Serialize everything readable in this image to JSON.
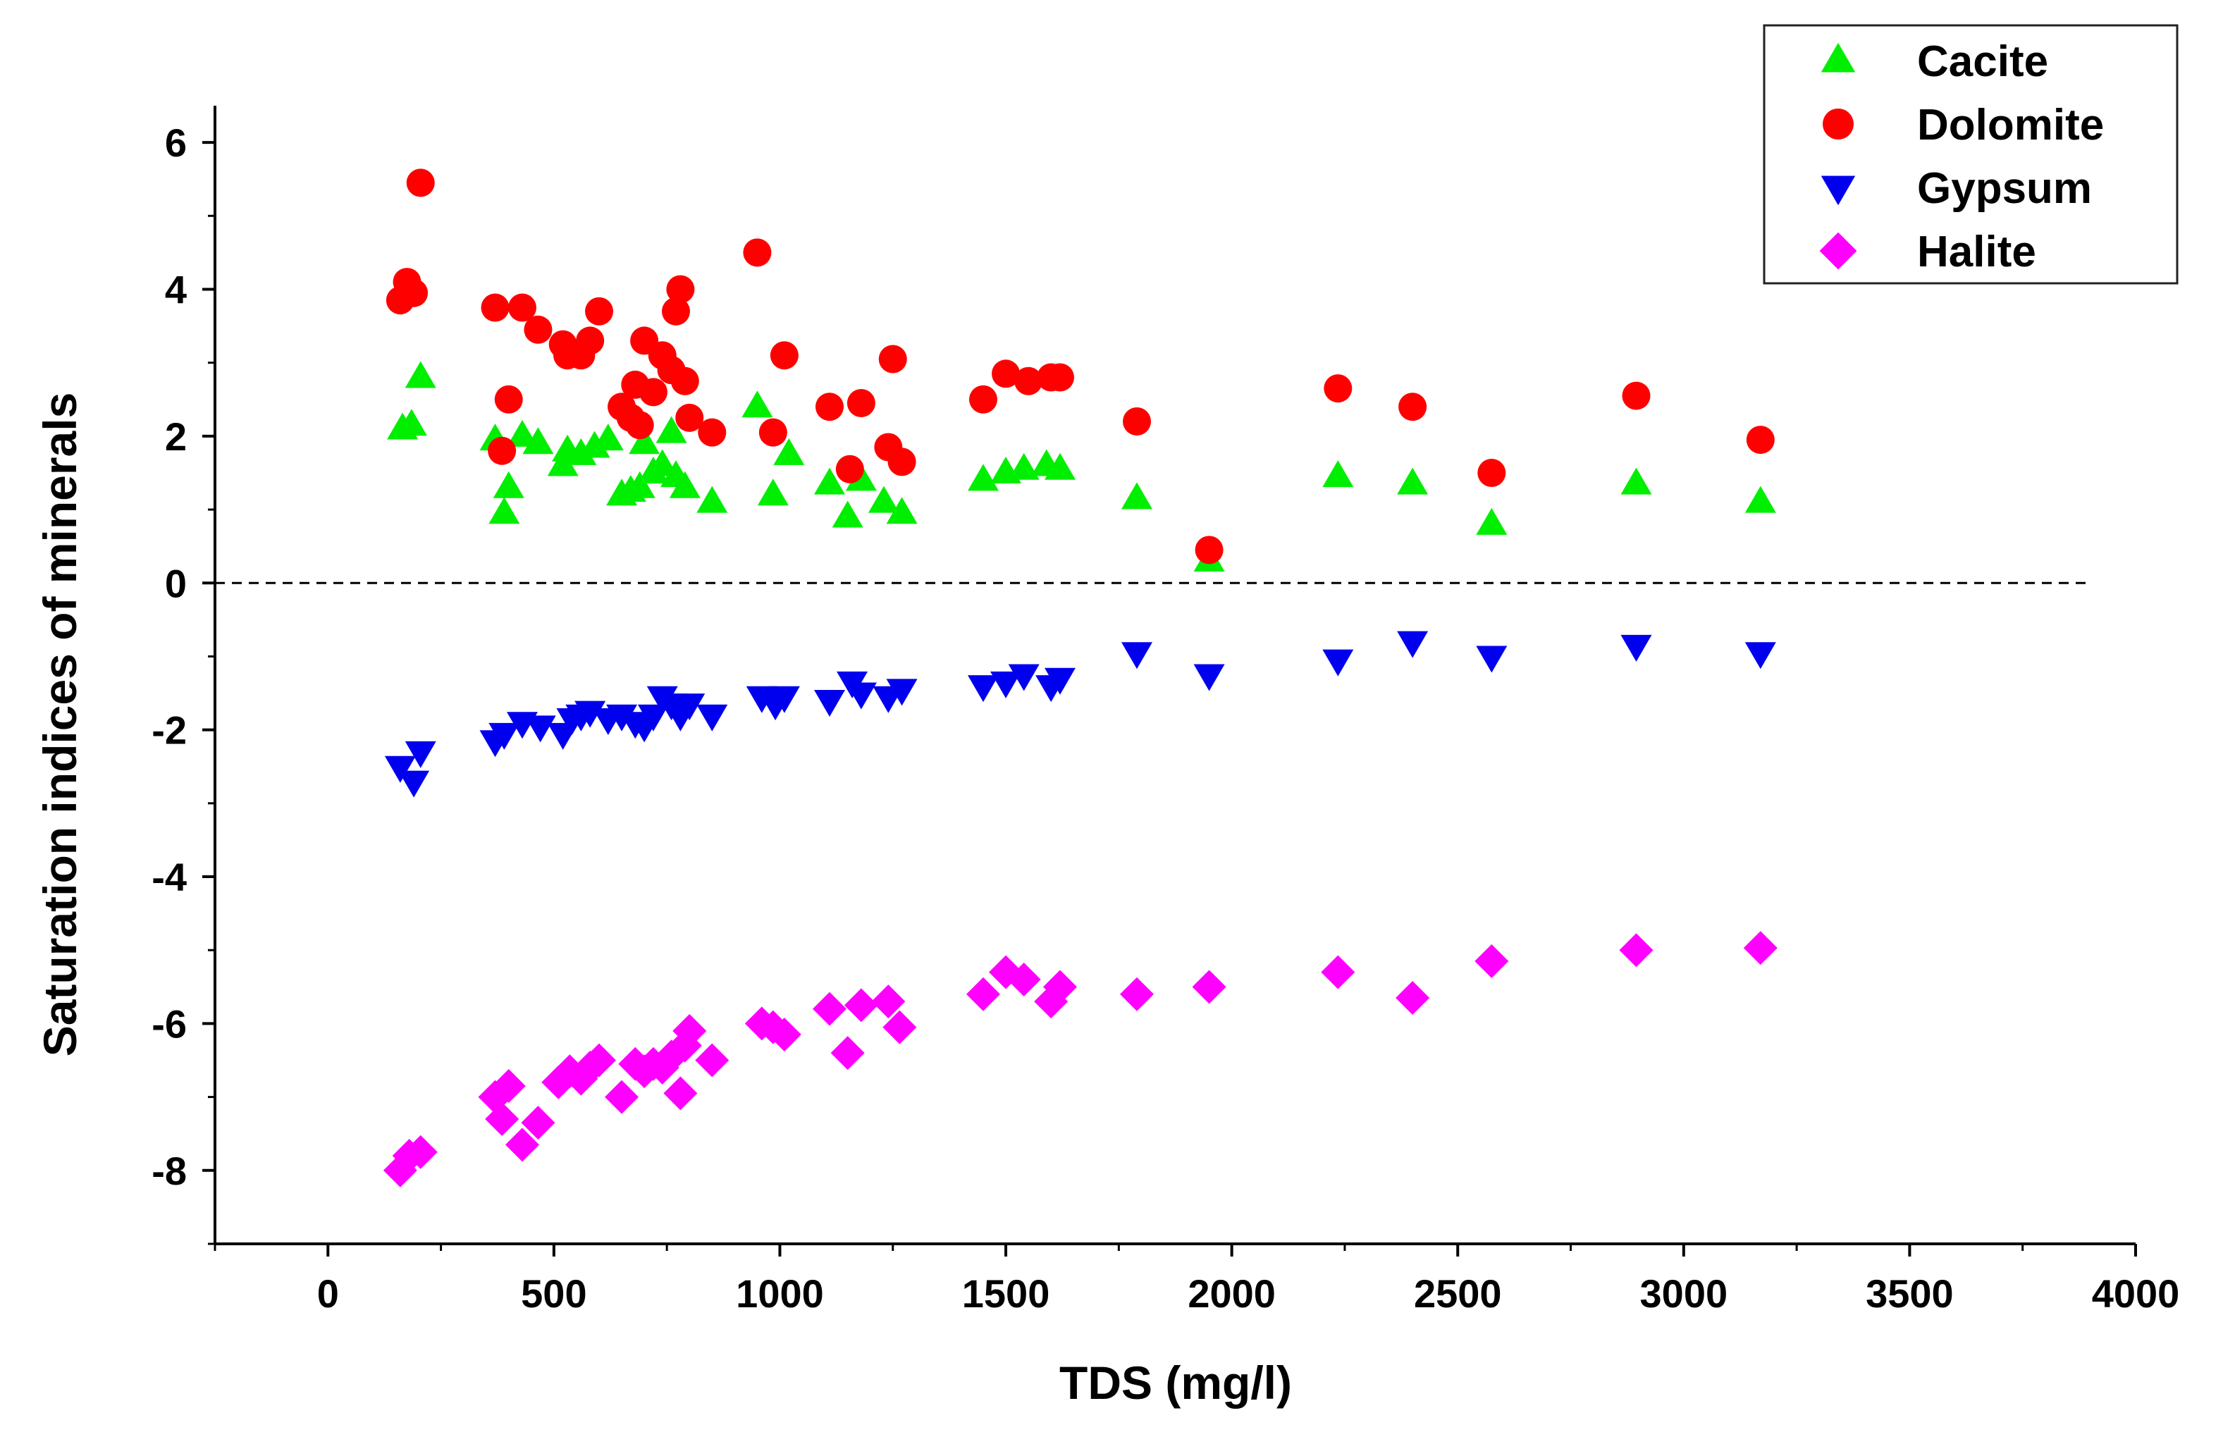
{
  "chart_data": {
    "type": "scatter",
    "title": "",
    "xlabel": "TDS (mg/l)",
    "ylabel": "Saturation indices of minerals",
    "xlim": [
      -250,
      4000
    ],
    "ylim": [
      -9,
      6.5
    ],
    "xticks": [
      0,
      500,
      1000,
      1500,
      2000,
      2500,
      3000,
      3500,
      4000
    ],
    "yticks": [
      -8,
      -6,
      -4,
      -2,
      0,
      2,
      4,
      6
    ],
    "xtick_labels": [
      "0",
      "500",
      "1000",
      "1500",
      "2000",
      "2500",
      "3000",
      "3500",
      "4000"
    ],
    "ytick_labels": [
      "-8",
      "-6",
      "-4",
      "-2",
      "0",
      "2",
      "4",
      "6"
    ],
    "reference_line": {
      "y": 0,
      "style": "dashed"
    },
    "legend_position": "top-right",
    "series": [
      {
        "name": "Cacite",
        "marker": "triangle-up",
        "color": "#00ee00",
        "x": [
          165,
          185,
          205,
          370,
          390,
          400,
          430,
          465,
          520,
          530,
          560,
          590,
          620,
          650,
          670,
          690,
          700,
          720,
          740,
          760,
          770,
          790,
          850,
          950,
          985,
          1020,
          1110,
          1150,
          1180,
          1230,
          1270,
          1450,
          1500,
          1540,
          1590,
          1620,
          1790,
          1950,
          2235,
          2400,
          2575,
          2895,
          3170
        ],
        "y": [
          2.1,
          2.15,
          2.8,
          1.95,
          0.95,
          1.3,
          2.0,
          1.9,
          1.6,
          1.8,
          1.75,
          1.85,
          1.95,
          1.2,
          1.25,
          1.3,
          1.9,
          1.5,
          1.6,
          2.05,
          1.45,
          1.3,
          1.1,
          2.4,
          1.2,
          1.75,
          1.35,
          0.9,
          1.4,
          1.1,
          0.95,
          1.4,
          1.5,
          1.55,
          1.6,
          1.55,
          1.15,
          0.3,
          1.45,
          1.35,
          0.8,
          1.35,
          1.1
        ]
      },
      {
        "name": "Dolomite",
        "marker": "circle",
        "color": "#ff0000",
        "x": [
          160,
          175,
          190,
          205,
          370,
          385,
          400,
          430,
          465,
          520,
          530,
          560,
          580,
          600,
          650,
          670,
          680,
          690,
          700,
          720,
          740,
          760,
          770,
          780,
          790,
          800,
          850,
          950,
          985,
          1010,
          1110,
          1155,
          1180,
          1240,
          1250,
          1270,
          1450,
          1500,
          1550,
          1600,
          1620,
          1790,
          1950,
          2235,
          2400,
          2575,
          2895,
          3170
        ],
        "y": [
          3.85,
          4.1,
          3.95,
          5.45,
          3.75,
          1.8,
          2.5,
          3.75,
          3.45,
          3.25,
          3.1,
          3.1,
          3.3,
          3.7,
          2.4,
          2.25,
          2.7,
          2.15,
          3.3,
          2.6,
          3.1,
          2.9,
          3.7,
          4.0,
          2.75,
          2.25,
          2.05,
          4.5,
          2.05,
          3.1,
          2.4,
          1.55,
          2.45,
          1.85,
          3.05,
          1.65,
          2.5,
          2.85,
          2.75,
          2.8,
          2.8,
          2.2,
          0.45,
          2.65,
          2.4,
          1.5,
          2.55,
          1.95
        ]
      },
      {
        "name": "Gypsum",
        "marker": "triangle-down",
        "color": "#0000ee",
        "x": [
          160,
          190,
          205,
          370,
          390,
          430,
          470,
          520,
          540,
          560,
          580,
          620,
          650,
          680,
          700,
          720,
          740,
          760,
          780,
          800,
          850,
          960,
          990,
          1010,
          1110,
          1160,
          1180,
          1240,
          1270,
          1450,
          1500,
          1540,
          1600,
          1620,
          1790,
          1950,
          2235,
          2400,
          2575,
          2895,
          3170
        ],
        "y": [
          -2.5,
          -2.7,
          -2.3,
          -2.15,
          -2.05,
          -1.9,
          -1.95,
          -2.05,
          -1.85,
          -1.8,
          -1.75,
          -1.85,
          -1.8,
          -1.9,
          -1.95,
          -1.8,
          -1.55,
          -1.65,
          -1.8,
          -1.65,
          -1.8,
          -1.55,
          -1.65,
          -1.55,
          -1.6,
          -1.35,
          -1.5,
          -1.55,
          -1.45,
          -1.4,
          -1.35,
          -1.25,
          -1.4,
          -1.3,
          -0.95,
          -1.25,
          -1.05,
          -0.8,
          -1.0,
          -0.85,
          -0.95
        ]
      },
      {
        "name": "Halite",
        "marker": "diamond",
        "color": "#ff00ff",
        "x": [
          160,
          180,
          205,
          370,
          385,
          400,
          430,
          465,
          510,
          535,
          560,
          580,
          600,
          650,
          680,
          700,
          720,
          740,
          760,
          780,
          790,
          800,
          850,
          960,
          985,
          1010,
          1110,
          1150,
          1180,
          1240,
          1265,
          1450,
          1500,
          1540,
          1600,
          1620,
          1790,
          1950,
          2235,
          2400,
          2575,
          2895,
          3170
        ],
        "y": [
          -8.0,
          -7.8,
          -7.75,
          -7.0,
          -7.3,
          -6.85,
          -7.65,
          -7.35,
          -6.8,
          -6.65,
          -6.75,
          -6.6,
          -6.5,
          -7.0,
          -6.55,
          -6.65,
          -6.55,
          -6.6,
          -6.45,
          -6.95,
          -6.3,
          -6.1,
          -6.5,
          -6.0,
          -6.05,
          -6.15,
          -5.8,
          -6.4,
          -5.75,
          -5.7,
          -6.05,
          -5.6,
          -5.3,
          -5.4,
          -5.7,
          -5.5,
          -5.6,
          -5.5,
          -5.3,
          -5.65,
          -5.15,
          -5.0,
          -4.97
        ]
      }
    ]
  }
}
